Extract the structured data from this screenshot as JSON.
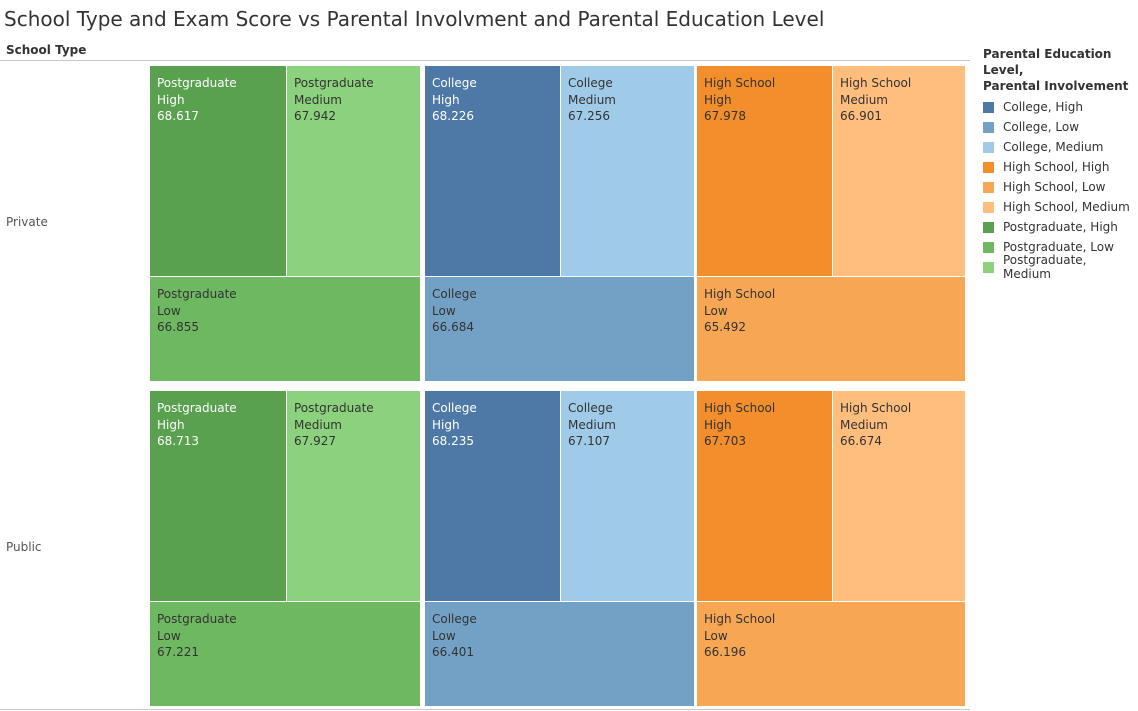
{
  "title": "School Type and Exam Score vs Parental Involvment and Parental Education Level",
  "header": {
    "row_dimension": "School Type"
  },
  "legend": {
    "title_line1": "Parental Education Level,",
    "title_line2": "Parental Involvement",
    "items": [
      {
        "label": "College, High",
        "color": "#4e79a7"
      },
      {
        "label": "College, Low",
        "color": "#73a1c6"
      },
      {
        "label": "College, Medium",
        "color": "#a0cbe8"
      },
      {
        "label": "High School, High",
        "color": "#f28e2b"
      },
      {
        "label": "High School, Low",
        "color": "#f7a654"
      },
      {
        "label": "High School, Medium",
        "color": "#ffbe7d"
      },
      {
        "label": "Postgraduate, High",
        "color": "#59a14f"
      },
      {
        "label": "Postgraduate, Low",
        "color": "#6fb862"
      },
      {
        "label": "Postgraduate, Medium",
        "color": "#8cd17d"
      }
    ]
  },
  "chart_data": {
    "type": "treemap",
    "title": "School Type and Exam Score vs Parental Involvment and Parental Education Level",
    "row_dimension": "School Type",
    "groups": [
      "Postgraduate",
      "College",
      "High School"
    ],
    "involvement_levels": [
      "High",
      "Medium",
      "Low"
    ],
    "rows": [
      {
        "label": "Private",
        "cells": [
          {
            "education": "Postgraduate",
            "involvement": "High",
            "value": "68.617",
            "color": "#59a14f"
          },
          {
            "education": "Postgraduate",
            "involvement": "Medium",
            "value": "67.942",
            "color": "#8cd17d"
          },
          {
            "education": "Postgraduate",
            "involvement": "Low",
            "value": "66.855",
            "color": "#6fb862"
          },
          {
            "education": "College",
            "involvement": "High",
            "value": "68.226",
            "color": "#4e79a7"
          },
          {
            "education": "College",
            "involvement": "Medium",
            "value": "67.256",
            "color": "#a0cbe8"
          },
          {
            "education": "College",
            "involvement": "Low",
            "value": "66.684",
            "color": "#73a1c6"
          },
          {
            "education": "High School",
            "involvement": "High",
            "value": "67.978",
            "color": "#f28e2b"
          },
          {
            "education": "High School",
            "involvement": "Medium",
            "value": "66.901",
            "color": "#ffbe7d"
          },
          {
            "education": "High School",
            "involvement": "Low",
            "value": "65.492",
            "color": "#f7a654"
          }
        ]
      },
      {
        "label": "Public",
        "cells": [
          {
            "education": "Postgraduate",
            "involvement": "High",
            "value": "68.713",
            "color": "#59a14f"
          },
          {
            "education": "Postgraduate",
            "involvement": "Medium",
            "value": "67.927",
            "color": "#8cd17d"
          },
          {
            "education": "Postgraduate",
            "involvement": "Low",
            "value": "67.221",
            "color": "#6fb862"
          },
          {
            "education": "College",
            "involvement": "High",
            "value": "68.235",
            "color": "#4e79a7"
          },
          {
            "education": "College",
            "involvement": "Medium",
            "value": "67.107",
            "color": "#a0cbe8"
          },
          {
            "education": "College",
            "involvement": "Low",
            "value": "66.401",
            "color": "#73a1c6"
          },
          {
            "education": "High School",
            "involvement": "High",
            "value": "67.703",
            "color": "#f28e2b"
          },
          {
            "education": "High School",
            "involvement": "Medium",
            "value": "66.674",
            "color": "#ffbe7d"
          },
          {
            "education": "High School",
            "involvement": "Low",
            "value": "66.196",
            "color": "#f7a654"
          }
        ]
      }
    ]
  }
}
